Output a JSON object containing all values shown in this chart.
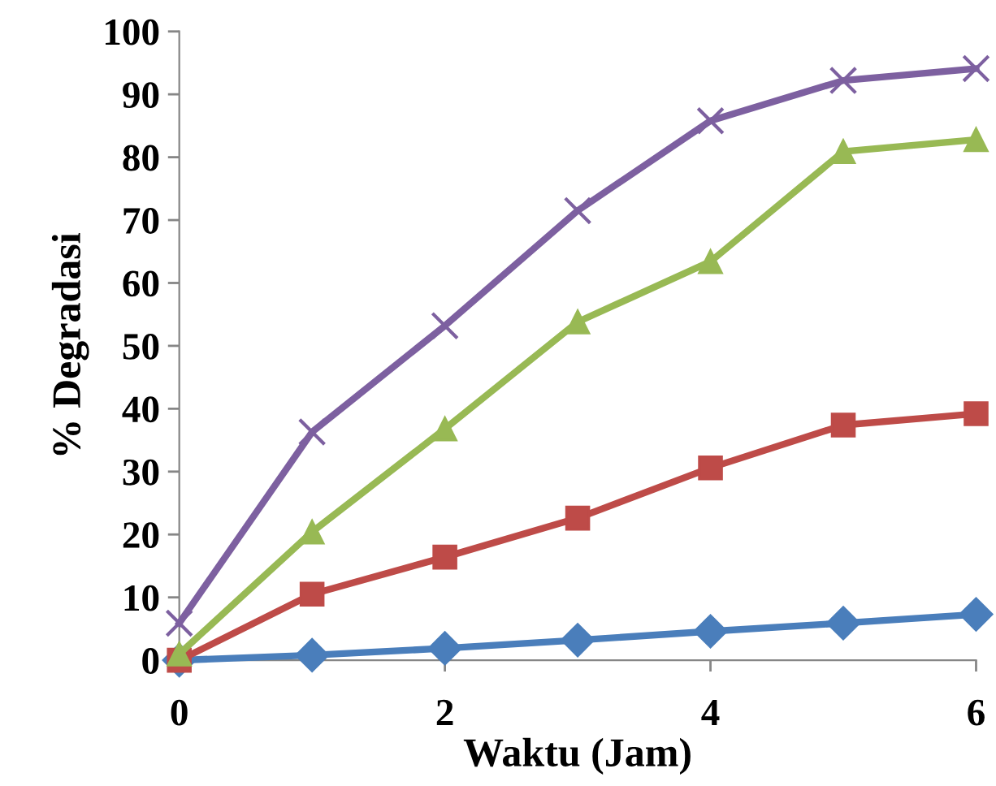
{
  "chart_data": {
    "type": "line",
    "xlabel": "Waktu (Jam)",
    "ylabel": "% Degradasi",
    "x": [
      0,
      1,
      2,
      3,
      4,
      5,
      6
    ],
    "xlim": [
      0,
      6
    ],
    "xticks": [
      0,
      2,
      4,
      6
    ],
    "ylim": [
      0,
      100
    ],
    "yticks": [
      0,
      10,
      20,
      30,
      40,
      50,
      60,
      70,
      80,
      90,
      100
    ],
    "grid": false,
    "legend": false,
    "line_style": "solid",
    "series": [
      {
        "color": "#4a7ebb",
        "marker": "diamond",
        "values": [
          0,
          0.8,
          1.9,
          3.2,
          4.6,
          5.9,
          7.3
        ]
      },
      {
        "color": "#be4b48",
        "marker": "square",
        "values": [
          0,
          10.5,
          16.4,
          22.6,
          30.6,
          37.4,
          39.2
        ]
      },
      {
        "color": "#98b954",
        "marker": "triangle",
        "values": [
          1,
          20.4,
          36.8,
          53.8,
          63.4,
          80.9,
          82.8
        ]
      },
      {
        "color": "#7d60a0",
        "marker": "cross",
        "values": [
          5.9,
          36.3,
          53.2,
          71.5,
          85.8,
          92.2,
          94.1
        ]
      }
    ]
  }
}
